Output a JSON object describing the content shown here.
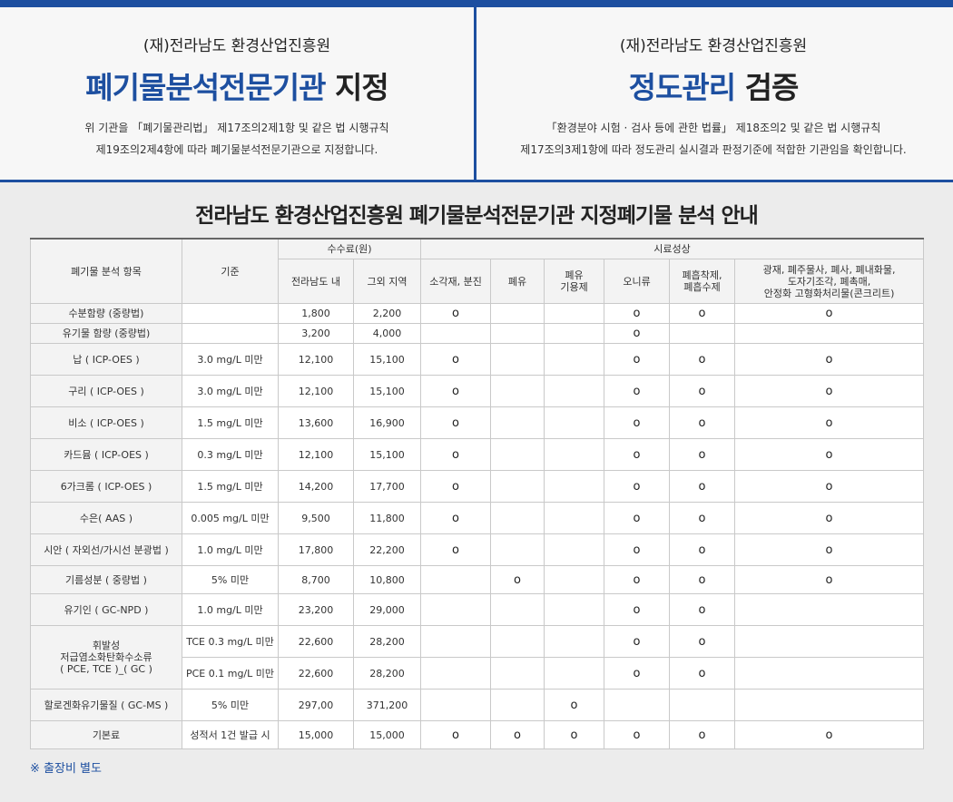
{
  "left_panel": {
    "org": "(재)전라남도 환경산업진흥원",
    "title_highlight": "폐기물분석전문기관",
    "title_rest": "지정",
    "desc_line1": "위 기관을 「폐기물관리법」 제17조의2제1항 및 같은 법 시행규칙",
    "desc_line2": "제19조의2제4항에 따라 폐기물분석전문기관으로 지정합니다."
  },
  "right_panel": {
    "org": "(재)전라남도 환경산업진흥원",
    "title_highlight": "정도관리",
    "title_rest": "검증",
    "desc_line1": "「환경분야 시험 · 검사 등에 관한 법률」 제18조의2 및 같은 법 시행규칙",
    "desc_line2": "제17조의3제1항에 따라 정도관리 실시결과 판정기준에 적합한 기관임을 확인합니다."
  },
  "section_title": "전라남도 환경산업진흥원 폐기물분석전문기관 지정폐기물 분석 안내",
  "table": {
    "header": {
      "item": "폐기물 분석 항목",
      "standard": "기준",
      "fee_group": "수수료(원)",
      "fee_inside": "전라남도 내",
      "fee_outside": "그외 지역",
      "sample_group": "시료성상",
      "s1": "소각재, 분진",
      "s2": "폐유",
      "s3": "폐유\n기용제",
      "s4": "오니류",
      "s5": "폐흡착제,\n폐흡수제",
      "s6": "광재, 폐주물사, 폐사, 폐내화물,\n도자기조각, 폐촉매,\n안정화 고형화처리물(콘크리트)"
    },
    "mark": "o",
    "rows": [
      {
        "item": "수분함량 (중량법)",
        "standard": "",
        "inside": "1,800",
        "outside": "2,200",
        "m": [
          1,
          0,
          0,
          1,
          1,
          1
        ],
        "cls": "short"
      },
      {
        "item": "유기물 함량 (중량법)",
        "standard": "",
        "inside": "3,200",
        "outside": "4,000",
        "m": [
          0,
          0,
          0,
          1,
          0,
          0
        ],
        "cls": "short"
      },
      {
        "item": "납 ( ICP-OES )",
        "standard": "3.0 mg/L 미만",
        "inside": "12,100",
        "outside": "15,100",
        "m": [
          1,
          0,
          0,
          1,
          1,
          1
        ],
        "cls": ""
      },
      {
        "item": "구리 ( ICP-OES )",
        "standard": "3.0 mg/L 미만",
        "inside": "12,100",
        "outside": "15,100",
        "m": [
          1,
          0,
          0,
          1,
          1,
          1
        ],
        "cls": ""
      },
      {
        "item": "비소 ( ICP-OES )",
        "standard": "1.5 mg/L 미만",
        "inside": "13,600",
        "outside": "16,900",
        "m": [
          1,
          0,
          0,
          1,
          1,
          1
        ],
        "cls": ""
      },
      {
        "item": "카드뮴 ( ICP-OES )",
        "standard": "0.3 mg/L 미만",
        "inside": "12,100",
        "outside": "15,100",
        "m": [
          1,
          0,
          0,
          1,
          1,
          1
        ],
        "cls": ""
      },
      {
        "item": "6가크롬 ( ICP-OES )",
        "standard": "1.5 mg/L 미만",
        "inside": "14,200",
        "outside": "17,700",
        "m": [
          1,
          0,
          0,
          1,
          1,
          1
        ],
        "cls": ""
      },
      {
        "item": "수은( AAS )",
        "standard": "0.005 mg/L 미만",
        "inside": "9,500",
        "outside": "11,800",
        "m": [
          1,
          0,
          0,
          1,
          1,
          1
        ],
        "cls": ""
      },
      {
        "item": "시안 ( 자외선/가시선 분광법 )",
        "standard": "1.0 mg/L 미만",
        "inside": "17,800",
        "outside": "22,200",
        "m": [
          1,
          0,
          0,
          1,
          1,
          1
        ],
        "cls": ""
      },
      {
        "item": "기름성분 ( 중량법 )",
        "standard": "5% 미만",
        "inside": "8,700",
        "outside": "10,800",
        "m": [
          0,
          1,
          0,
          1,
          1,
          1
        ],
        "cls": "med"
      }
    ],
    "organophos": {
      "item": "유기인 ( GC-NPD )",
      "standard": "1.0 mg/L 미만",
      "inside": "23,200",
      "outside": "29,000",
      "m": [
        0,
        0,
        0,
        1,
        1,
        0
      ]
    },
    "volatile": {
      "item": "휘발성\n저급염소화탄화수소류\n( PCE, TCE )_( GC )",
      "sub": [
        {
          "standard": "TCE 0.3 mg/L 미만",
          "inside": "22,600",
          "outside": "28,200",
          "m": [
            0,
            0,
            0,
            1,
            1,
            0
          ]
        },
        {
          "standard": "PCE 0.1 mg/L 미만",
          "inside": "22,600",
          "outside": "28,200",
          "m": [
            0,
            0,
            0,
            1,
            1,
            0
          ]
        }
      ]
    },
    "halogen": {
      "item": "할로겐화유기물질 ( GC-MS )",
      "standard": "5% 미만",
      "inside": "297,00",
      "outside": "371,200",
      "m": [
        0,
        0,
        1,
        0,
        0,
        0
      ]
    },
    "basic": {
      "item": "기본료",
      "standard": "성적서 1건 발급 시",
      "inside": "15,000",
      "outside": "15,000",
      "m": [
        1,
        1,
        1,
        1,
        1,
        1
      ]
    }
  },
  "note": "※ 출장비 별도"
}
